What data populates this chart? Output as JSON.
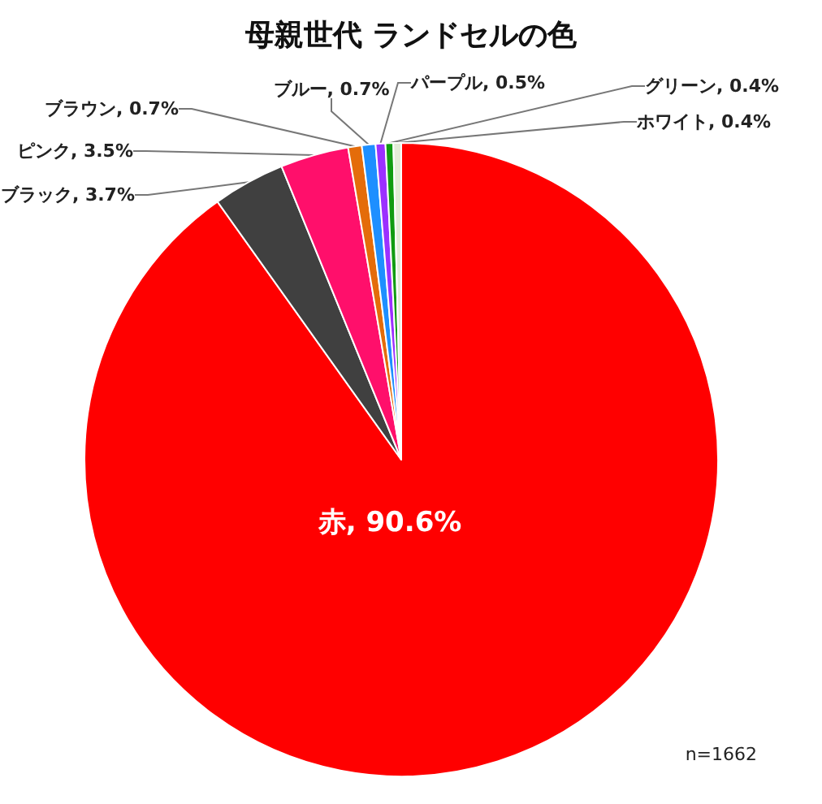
{
  "chart_data": {
    "type": "pie",
    "title": "母親世代 ランドセルの色",
    "categories": [
      "赤",
      "ブラック",
      "ピンク",
      "ブラウン",
      "ブルー",
      "パープル",
      "グリーン",
      "ホワイト"
    ],
    "values": [
      90.6,
      3.7,
      3.5,
      0.7,
      0.7,
      0.5,
      0.4,
      0.4
    ],
    "colors": [
      "#ff0000",
      "#404040",
      "#ff0f6b",
      "#e46c0a",
      "#1e8fff",
      "#9b30ff",
      "#119c11",
      "#e4ecd8"
    ],
    "value_labels": [
      ", 90.6%",
      ", 3.7%",
      ", 3.5%",
      ", 0.7%",
      ", 0.7%",
      ", 0.5%",
      ", 0.4%",
      ", 0.4%"
    ],
    "annotations": [
      "n=1662"
    ]
  }
}
